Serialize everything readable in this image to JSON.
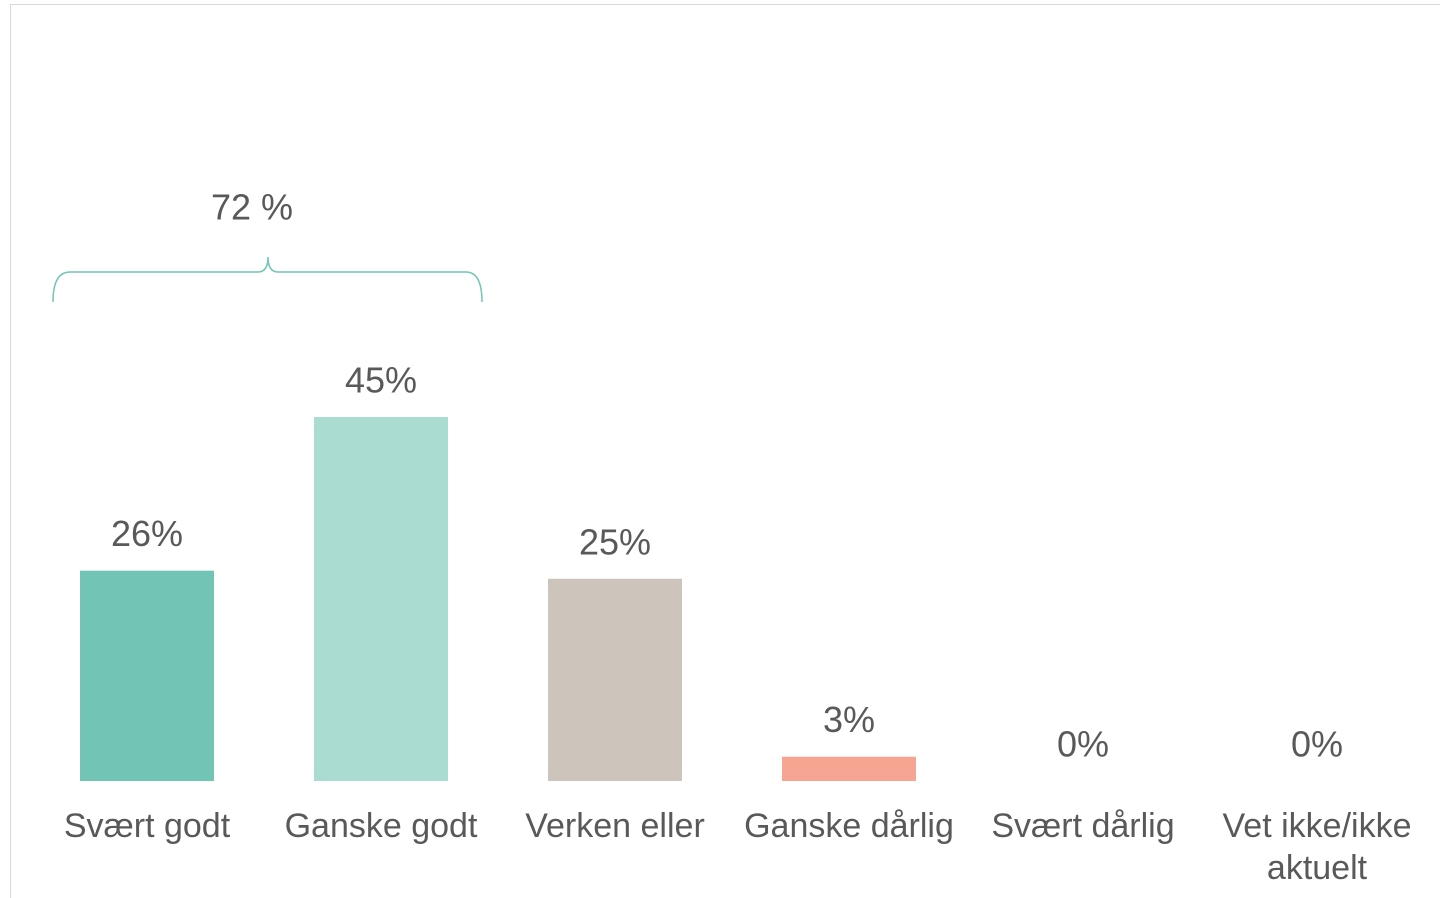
{
  "chart_data": {
    "type": "bar",
    "categories": [
      "Svært godt",
      "Ganske godt",
      "Verken eller",
      "Ganske dårlig",
      "Svært dårlig",
      "Vet ikke/ikke aktuelt"
    ],
    "values": [
      26,
      45,
      25,
      3,
      0,
      0
    ],
    "value_labels": [
      "26%",
      "45%",
      "25%",
      "3%",
      "0%",
      "0%"
    ],
    "colors": [
      "#72c4b4",
      "#aadcd2",
      "#cdc5bc",
      "#f6a592",
      "#e8735c",
      "#bfbfbf"
    ],
    "ylim": [
      0,
      90
    ],
    "annotation": "72 %"
  }
}
